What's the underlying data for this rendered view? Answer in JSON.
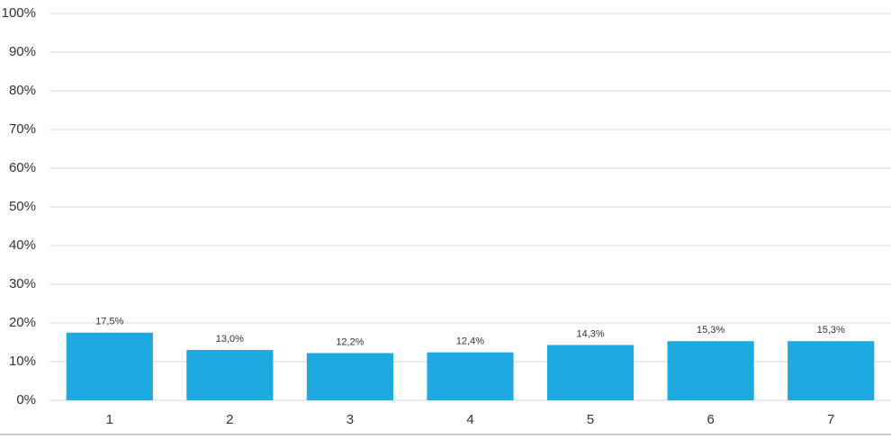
{
  "chart_data": {
    "type": "bar",
    "categories": [
      "1",
      "2",
      "3",
      "4",
      "5",
      "6",
      "7"
    ],
    "values": [
      17.5,
      13.0,
      12.2,
      12.4,
      14.3,
      15.3,
      15.3
    ],
    "value_labels": [
      "17,5%",
      "13,0%",
      "12,2%",
      "12,4%",
      "14,3%",
      "15,3%",
      "15,3%"
    ],
    "color": "#1ea9e1",
    "ylim": [
      0,
      100
    ],
    "yticks": [
      {
        "value": 0,
        "label": "0%"
      },
      {
        "value": 10,
        "label": "10%"
      },
      {
        "value": 20,
        "label": "20%"
      },
      {
        "value": 30,
        "label": "30%"
      },
      {
        "value": 40,
        "label": "40%"
      },
      {
        "value": 50,
        "label": "50%"
      },
      {
        "value": 60,
        "label": "60%"
      },
      {
        "value": 70,
        "label": "70%"
      },
      {
        "value": 80,
        "label": "80%"
      },
      {
        "value": 90,
        "label": "90%"
      },
      {
        "value": 100,
        "label": "100%"
      }
    ],
    "grid": true
  }
}
